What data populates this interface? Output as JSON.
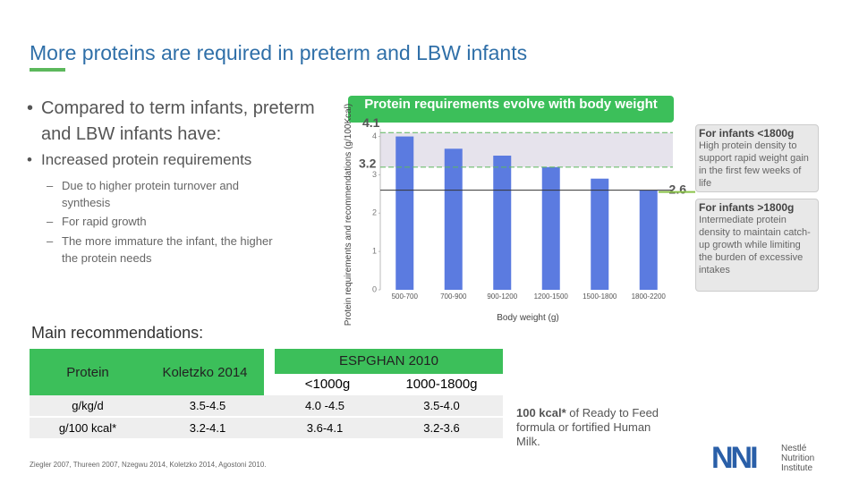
{
  "header": {
    "title": "More proteins are required in preterm and LBW infants"
  },
  "bullets": {
    "main": "Compared to term infants, preterm and LBW infants have:",
    "sub": "Increased protein requirements",
    "items": [
      "Due to higher protein turnover and synthesis",
      "For rapid growth",
      "The more immature the infant, the higher the protein needs"
    ]
  },
  "chart_data": {
    "type": "bar",
    "title": "Protein requirements evolve with body weight",
    "y_label": "Protein requirements and recommendations (g/100Kcal)",
    "x_label": "Body weight (g)",
    "categories": [
      "500-700",
      "700-900",
      "900-1200",
      "1200-1500",
      "1500-1800",
      "1800-2200"
    ],
    "values": [
      4.0,
      3.68,
      3.5,
      3.2,
      2.9,
      2.6
    ],
    "color": "#5b7be0",
    "ylim": [
      0,
      4.2
    ],
    "yticks": [
      0,
      1,
      2,
      3,
      4
    ],
    "reference_lines": [
      4.1,
      3.2,
      2.6
    ]
  },
  "side_boxes": [
    {
      "title": "For infants <1800g",
      "text": "High protein density to support rapid weight gain in the first few weeks of life"
    },
    {
      "title": "For infants >1800g",
      "text": "Intermediate protein density to maintain catch-up growth while limiting the burden of excessive intakes"
    }
  ],
  "recommendations": {
    "title": "Main recommendations:",
    "headers": [
      "Protein",
      "Koletzko 2014",
      "ESPGHAN 2010"
    ],
    "subheaders": [
      "<1000g",
      "1000-1800g"
    ],
    "rows": [
      [
        "g/kg/d",
        "3.5-4.5",
        "4.0 -4.5",
        "3.5-4.0"
      ],
      [
        "g/100 kcal*",
        "3.2-4.1",
        "3.6-4.1",
        "3.2-3.6"
      ]
    ]
  },
  "note": {
    "bold": "100 kcal*",
    "text": "of Ready to Feed formula or fortified Human Milk."
  },
  "references": "Ziegler 2007, Thureen 2007, Nzegwu 2014, Koletzko 2014, Agostoni 2010.",
  "logo": {
    "mark": "NNI",
    "lines": [
      "Nestlé",
      "Nutrition",
      "Institute"
    ]
  }
}
